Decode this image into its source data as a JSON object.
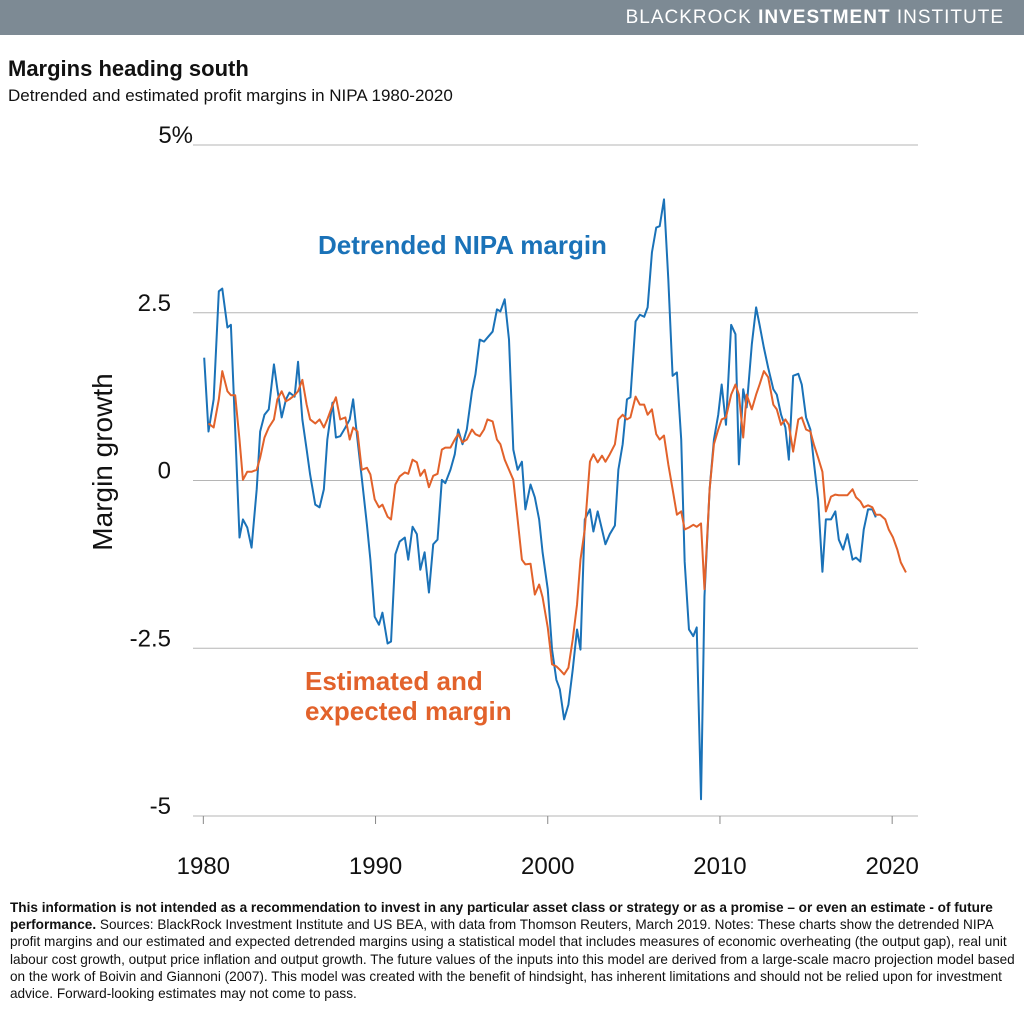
{
  "header": {
    "brand": [
      "BLACKROCK",
      "INVESTMENT",
      "INSTITUTE"
    ]
  },
  "chart_data": {
    "type": "line",
    "title": "Margins heading south",
    "subtitle": "Detrended and estimated profit margins in NIPA 1980-2020",
    "y_label": "Margin growth",
    "xlim": [
      1979.4,
      2021.5
    ],
    "xticks": [
      1980,
      1990,
      2000,
      2010,
      2020
    ],
    "ylim": [
      -5,
      5
    ],
    "yticks": [
      -5,
      -2.5,
      0,
      2.5,
      {
        "value": 5,
        "label": "5%"
      }
    ],
    "grid": true,
    "x": [
      1980.05,
      1980.3,
      1980.6,
      1980.9,
      1981.1,
      1981.4,
      1981.6,
      1981.85,
      1982.1,
      1982.3,
      1982.55,
      1982.8,
      1983.1,
      1983.3,
      1983.55,
      1983.8,
      1984.1,
      1984.3,
      1984.55,
      1984.8,
      1985.0,
      1985.3,
      1985.5,
      1985.75,
      1986.0,
      1986.2,
      1986.5,
      1986.75,
      1987.0,
      1987.2,
      1987.5,
      1987.7,
      1987.95,
      1988.25,
      1988.5,
      1988.7,
      1988.95,
      1989.2,
      1989.5,
      1989.7,
      1989.95,
      1990.2,
      1990.4,
      1990.7,
      1990.9,
      1991.15,
      1991.4,
      1991.7,
      1991.9,
      1992.15,
      1992.4,
      1992.6,
      1992.85,
      1993.1,
      1993.35,
      1993.6,
      1993.85,
      1994.05,
      1994.35,
      1994.6,
      1994.8,
      1995.05,
      1995.3,
      1995.6,
      1995.8,
      1996.05,
      1996.3,
      1996.5,
      1996.8,
      1997.05,
      1997.25,
      1997.5,
      1997.75,
      1998.0,
      1998.25,
      1998.5,
      1998.7,
      1999.0,
      1999.25,
      1999.5,
      1999.7,
      2000.0,
      2000.25,
      2000.5,
      2000.7,
      2000.95,
      2001.2,
      2001.45,
      2001.7,
      2001.9,
      2002.15,
      2002.45,
      2002.65,
      2002.9,
      2003.15,
      2003.35,
      2003.6,
      2003.9,
      2004.1,
      2004.35,
      2004.6,
      2004.8,
      2005.1,
      2005.35,
      2005.6,
      2005.8,
      2006.05,
      2006.3,
      2006.5,
      2006.75,
      2007.0,
      2007.25,
      2007.5,
      2007.75,
      2007.95,
      2008.2,
      2008.45,
      2008.65,
      2008.9,
      2009.1,
      2009.4,
      2009.65,
      2009.9,
      2010.1,
      2010.35,
      2010.65,
      2010.9,
      2011.1,
      2011.35,
      2011.55,
      2011.85,
      2012.1,
      2012.3,
      2012.55,
      2012.8,
      2013.1,
      2013.3,
      2013.55,
      2013.8,
      2014.0,
      2014.25,
      2014.55,
      2014.75,
      2015.0,
      2015.25,
      2015.45,
      2015.7,
      2015.95,
      2016.15,
      2016.45,
      2016.7,
      2016.9,
      2017.15,
      2017.4,
      2017.7,
      2017.9,
      2018.15,
      2018.35,
      2018.6,
      2018.85,
      2019.05,
      2019.3,
      2019.6,
      2019.8,
      2020.05,
      2020.3,
      2020.5,
      2020.8
    ],
    "series": [
      {
        "name": "Detrended NIPA margin",
        "color": "#1a72b8",
        "values": [
          1.83,
          0.73,
          1.21,
          2.82,
          2.86,
          2.28,
          2.32,
          0.76,
          -0.85,
          -0.58,
          -0.7,
          -1.0,
          -0.13,
          0.73,
          0.98,
          1.06,
          1.73,
          1.36,
          0.94,
          1.21,
          1.31,
          1.25,
          1.77,
          0.91,
          0.46,
          0.09,
          -0.36,
          -0.4,
          -0.13,
          0.61,
          1.16,
          0.64,
          0.66,
          0.79,
          0.91,
          1.21,
          0.61,
          0.04,
          -0.66,
          -1.18,
          -2.03,
          -2.15,
          -1.97,
          -2.43,
          -2.4,
          -1.1,
          -0.91,
          -0.85,
          -1.18,
          -0.69,
          -0.8,
          -1.33,
          -1.07,
          -1.67,
          -0.95,
          -0.88,
          0.01,
          -0.04,
          0.16,
          0.39,
          0.76,
          0.54,
          0.76,
          1.33,
          1.58,
          2.1,
          2.07,
          2.13,
          2.22,
          2.55,
          2.52,
          2.7,
          2.1,
          0.46,
          0.16,
          0.28,
          -0.43,
          -0.06,
          -0.25,
          -0.58,
          -1.07,
          -1.62,
          -2.52,
          -2.97,
          -3.11,
          -3.56,
          -3.34,
          -2.82,
          -2.22,
          -2.52,
          -0.58,
          -0.43,
          -0.76,
          -0.46,
          -0.73,
          -0.95,
          -0.8,
          -0.67,
          0.16,
          0.54,
          1.21,
          1.24,
          2.37,
          2.47,
          2.44,
          2.58,
          3.4,
          3.77,
          3.79,
          4.19,
          3.0,
          1.56,
          1.61,
          0.61,
          -1.21,
          -2.22,
          -2.32,
          -2.19,
          -4.75,
          -1.73,
          -0.13,
          0.61,
          0.98,
          1.43,
          0.83,
          2.32,
          2.18,
          0.24,
          1.36,
          1.09,
          2.03,
          2.58,
          2.32,
          1.98,
          1.68,
          1.36,
          1.28,
          0.98,
          0.79,
          0.31,
          1.56,
          1.59,
          1.43,
          0.94,
          0.76,
          0.28,
          -0.28,
          -1.36,
          -0.58,
          -0.58,
          -0.46,
          -0.88,
          -1.03,
          -0.8,
          -1.18,
          -1.15,
          -1.21,
          -0.73,
          -0.43,
          -0.43,
          -0.55,
          null,
          null,
          null,
          null,
          null,
          null,
          null
        ]
      },
      {
        "name": "Estimated and expected margin",
        "color": "#e2622b",
        "values": [
          null,
          0.85,
          0.79,
          1.21,
          1.63,
          1.33,
          1.27,
          1.27,
          0.61,
          0.01,
          0.13,
          0.13,
          0.16,
          0.34,
          0.64,
          0.79,
          0.91,
          1.21,
          1.33,
          1.18,
          1.21,
          1.27,
          1.33,
          1.5,
          1.13,
          0.91,
          0.85,
          0.91,
          0.79,
          0.91,
          1.12,
          1.24,
          0.91,
          0.94,
          0.61,
          0.79,
          0.73,
          0.16,
          0.19,
          0.09,
          -0.28,
          -0.4,
          -0.36,
          -0.54,
          -0.58,
          -0.06,
          0.06,
          0.12,
          0.1,
          0.31,
          0.27,
          0.07,
          0.16,
          -0.1,
          0.07,
          0.1,
          0.46,
          0.49,
          0.49,
          0.61,
          0.69,
          0.57,
          0.61,
          0.76,
          0.69,
          0.66,
          0.76,
          0.91,
          0.88,
          0.61,
          0.54,
          0.31,
          0.16,
          0.01,
          -0.58,
          -1.18,
          -1.25,
          -1.24,
          -1.7,
          -1.55,
          -1.74,
          -2.19,
          -2.74,
          -2.77,
          -2.82,
          -2.89,
          -2.79,
          -2.37,
          -1.85,
          -1.18,
          -0.73,
          0.28,
          0.39,
          0.27,
          0.37,
          0.28,
          0.39,
          0.54,
          0.91,
          0.98,
          0.91,
          0.94,
          1.25,
          1.13,
          1.13,
          0.98,
          1.06,
          0.69,
          0.61,
          0.67,
          0.24,
          -0.13,
          -0.51,
          -0.46,
          -0.73,
          -0.7,
          -0.66,
          -0.69,
          -0.64,
          -1.62,
          -0.13,
          0.54,
          0.76,
          0.91,
          0.94,
          1.28,
          1.43,
          1.28,
          0.64,
          1.28,
          1.06,
          1.28,
          1.43,
          1.63,
          1.54,
          1.13,
          1.06,
          0.83,
          0.91,
          0.83,
          0.43,
          0.91,
          0.94,
          0.76,
          0.73,
          0.54,
          0.34,
          0.13,
          -0.46,
          -0.24,
          -0.21,
          -0.22,
          -0.22,
          -0.22,
          -0.13,
          -0.25,
          -0.31,
          -0.4,
          -0.37,
          -0.4,
          -0.51,
          -0.51,
          -0.58,
          -0.73,
          -0.85,
          -1.03,
          -1.22,
          -1.37
        ]
      }
    ]
  },
  "footer": {
    "bold": "This information is not intended as a recommendation to invest in any particular asset class or strategy or as a promise – or even an estimate - of future performance.",
    "text": "Sources: BlackRock Investment Institute and US BEA, with data from Thomson Reuters, March 2019. Notes: These charts show the detrended NIPA profit margins and our estimated and expected detrended margins using a statistical model that includes measures of economic overheating (the output gap), real unit labour cost growth, output price inflation and output growth. The future values of the inputs into this model are derived from a large-scale macro projection model based on the work of Boivin and Giannoni (2007). This model was created with the benefit of hindsight, has inherent limitations and should not be relied upon for investment advice. Forward-looking estimates may not come to pass."
  }
}
